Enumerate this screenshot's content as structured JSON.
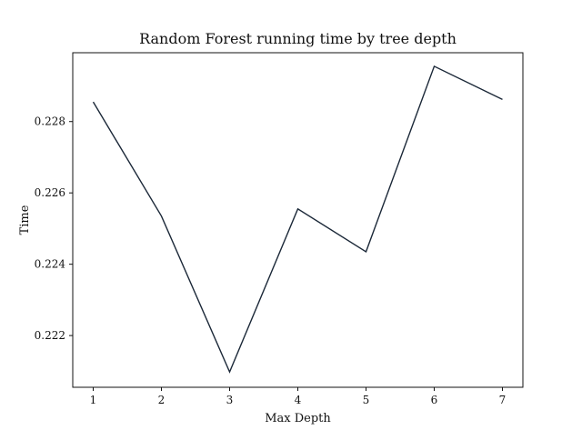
{
  "chart_data": {
    "type": "line",
    "title": "Random Forest running time by tree depth",
    "xlabel": "Max Depth",
    "ylabel": "Time",
    "x": [
      1,
      2,
      3,
      4,
      5,
      6,
      7
    ],
    "series": [
      {
        "values": [
          0.22855,
          0.22535,
          0.22098,
          0.22555,
          0.22435,
          0.22955,
          0.22862
        ],
        "color": "#1b2838"
      }
    ],
    "xticks": [
      1,
      2,
      3,
      4,
      5,
      6,
      7
    ],
    "yticks": [
      0.222,
      0.224,
      0.226,
      0.228
    ],
    "ytick_labels": [
      "0.222",
      "0.224",
      "0.226",
      "0.228"
    ],
    "xlim": [
      0.7,
      7.3
    ],
    "ylim": [
      0.22055,
      0.22993
    ],
    "grid": false,
    "legend": "none"
  }
}
